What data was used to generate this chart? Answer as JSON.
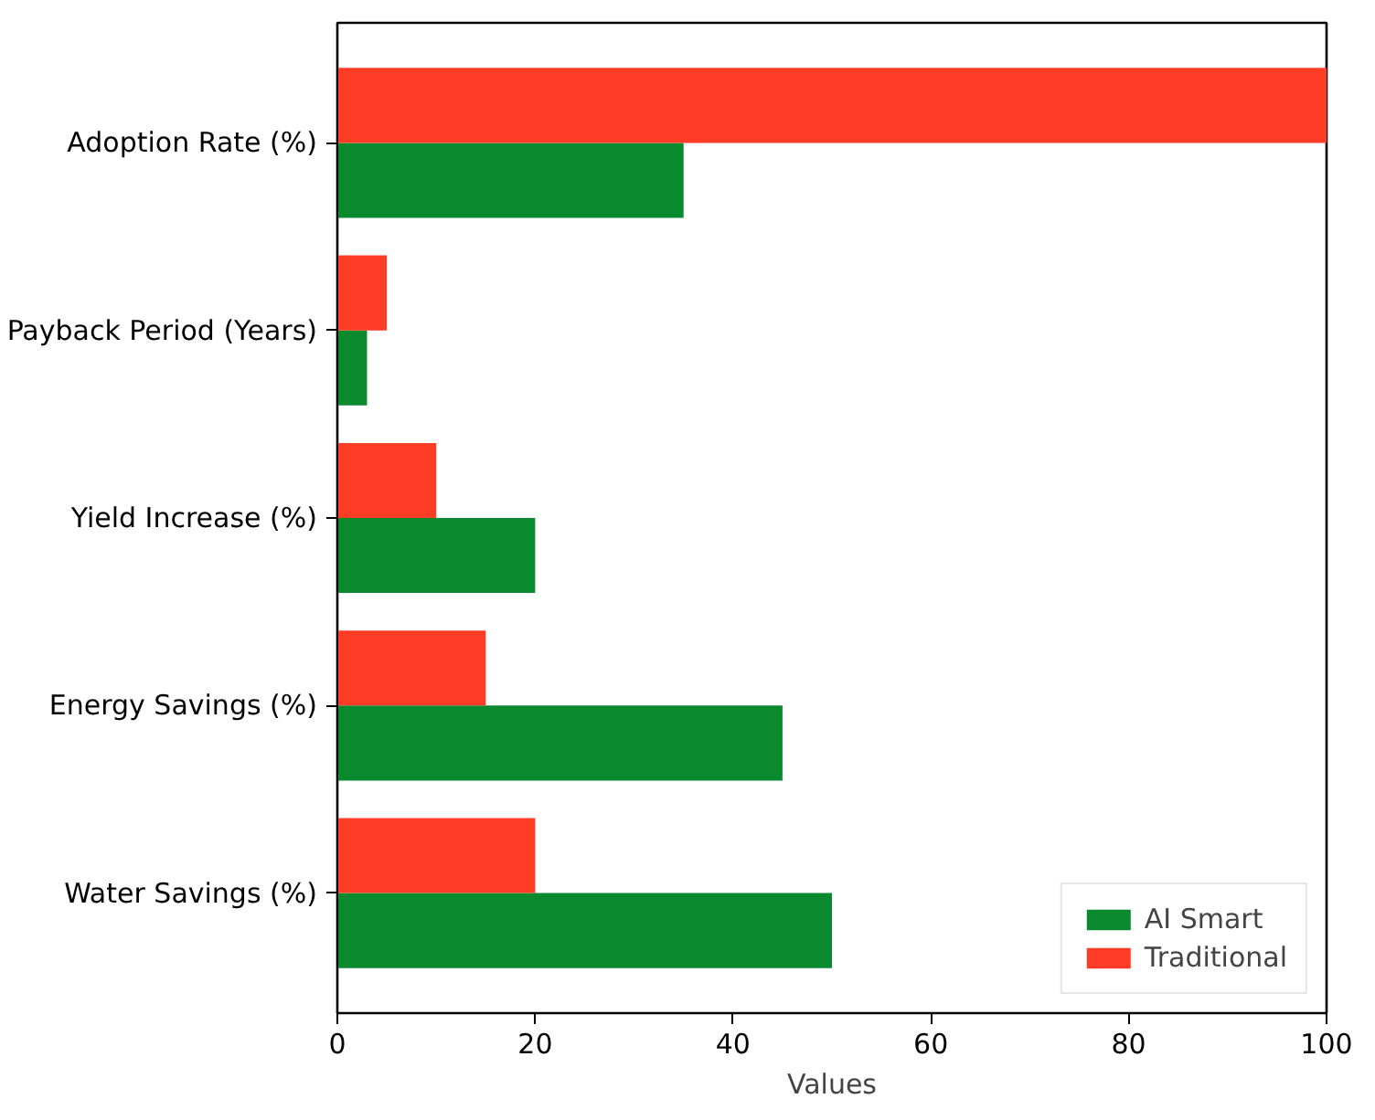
{
  "chart_data": {
    "type": "bar",
    "orientation": "horizontal",
    "xlabel": "Values",
    "categories": [
      "Adoption Rate (%)",
      "Payback Period (Years)",
      "Yield Increase (%)",
      "Energy Savings (%)",
      "Water Savings (%)"
    ],
    "series": [
      {
        "name": "AI Smart",
        "color": "#0a8a2e",
        "values": [
          35,
          3,
          20,
          45,
          50
        ]
      },
      {
        "name": "Traditional",
        "color": "#ff3d26",
        "values": [
          100,
          5,
          10,
          15,
          20
        ]
      }
    ],
    "xlim": [
      0,
      100
    ],
    "xticks": [
      0,
      20,
      40,
      60,
      80,
      100
    ],
    "grid": false,
    "legend": "bottom right"
  }
}
